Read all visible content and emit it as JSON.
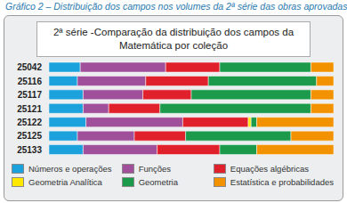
{
  "chart_data": {
    "type": "bar",
    "orientation": "horizontal",
    "stacked": true,
    "title": "Gráfico 2 – Distribuição dos campos nos volumes da 2ª série das obras aprovadas",
    "subtitle": "2ª série -Comparação da distribuição dos campos da Matemática por coleção",
    "categories": [
      "25042",
      "25116",
      "25117",
      "25121",
      "25122",
      "25125",
      "25133"
    ],
    "xlim": [
      0,
      100
    ],
    "tick_labels": "y",
    "grid": false,
    "legend": "bottom",
    "series": [
      {
        "name": "Números e operações",
        "color": "#1ba1dc",
        "values": [
          11,
          10,
          12,
          12,
          13,
          10,
          12
        ]
      },
      {
        "name": "Funções",
        "color": "#a0509a",
        "values": [
          30,
          24,
          21,
          9,
          34,
          20,
          26
        ]
      },
      {
        "name": "Equações algébricas",
        "color": "#e0202b",
        "values": [
          19,
          22,
          17,
          18,
          23,
          18,
          22
        ]
      },
      {
        "name": "Geometria Analítica",
        "color": "#ffe800",
        "values": [
          0,
          0,
          0,
          0,
          1,
          0,
          0
        ]
      },
      {
        "name": "Geometria",
        "color": "#1a9a4a",
        "values": [
          32,
          38,
          42,
          53,
          2,
          37,
          13
        ]
      },
      {
        "name": "Estatística e probabilidades",
        "color": "#f39200",
        "values": [
          8,
          6,
          8,
          8,
          27,
          15,
          27
        ]
      }
    ]
  }
}
